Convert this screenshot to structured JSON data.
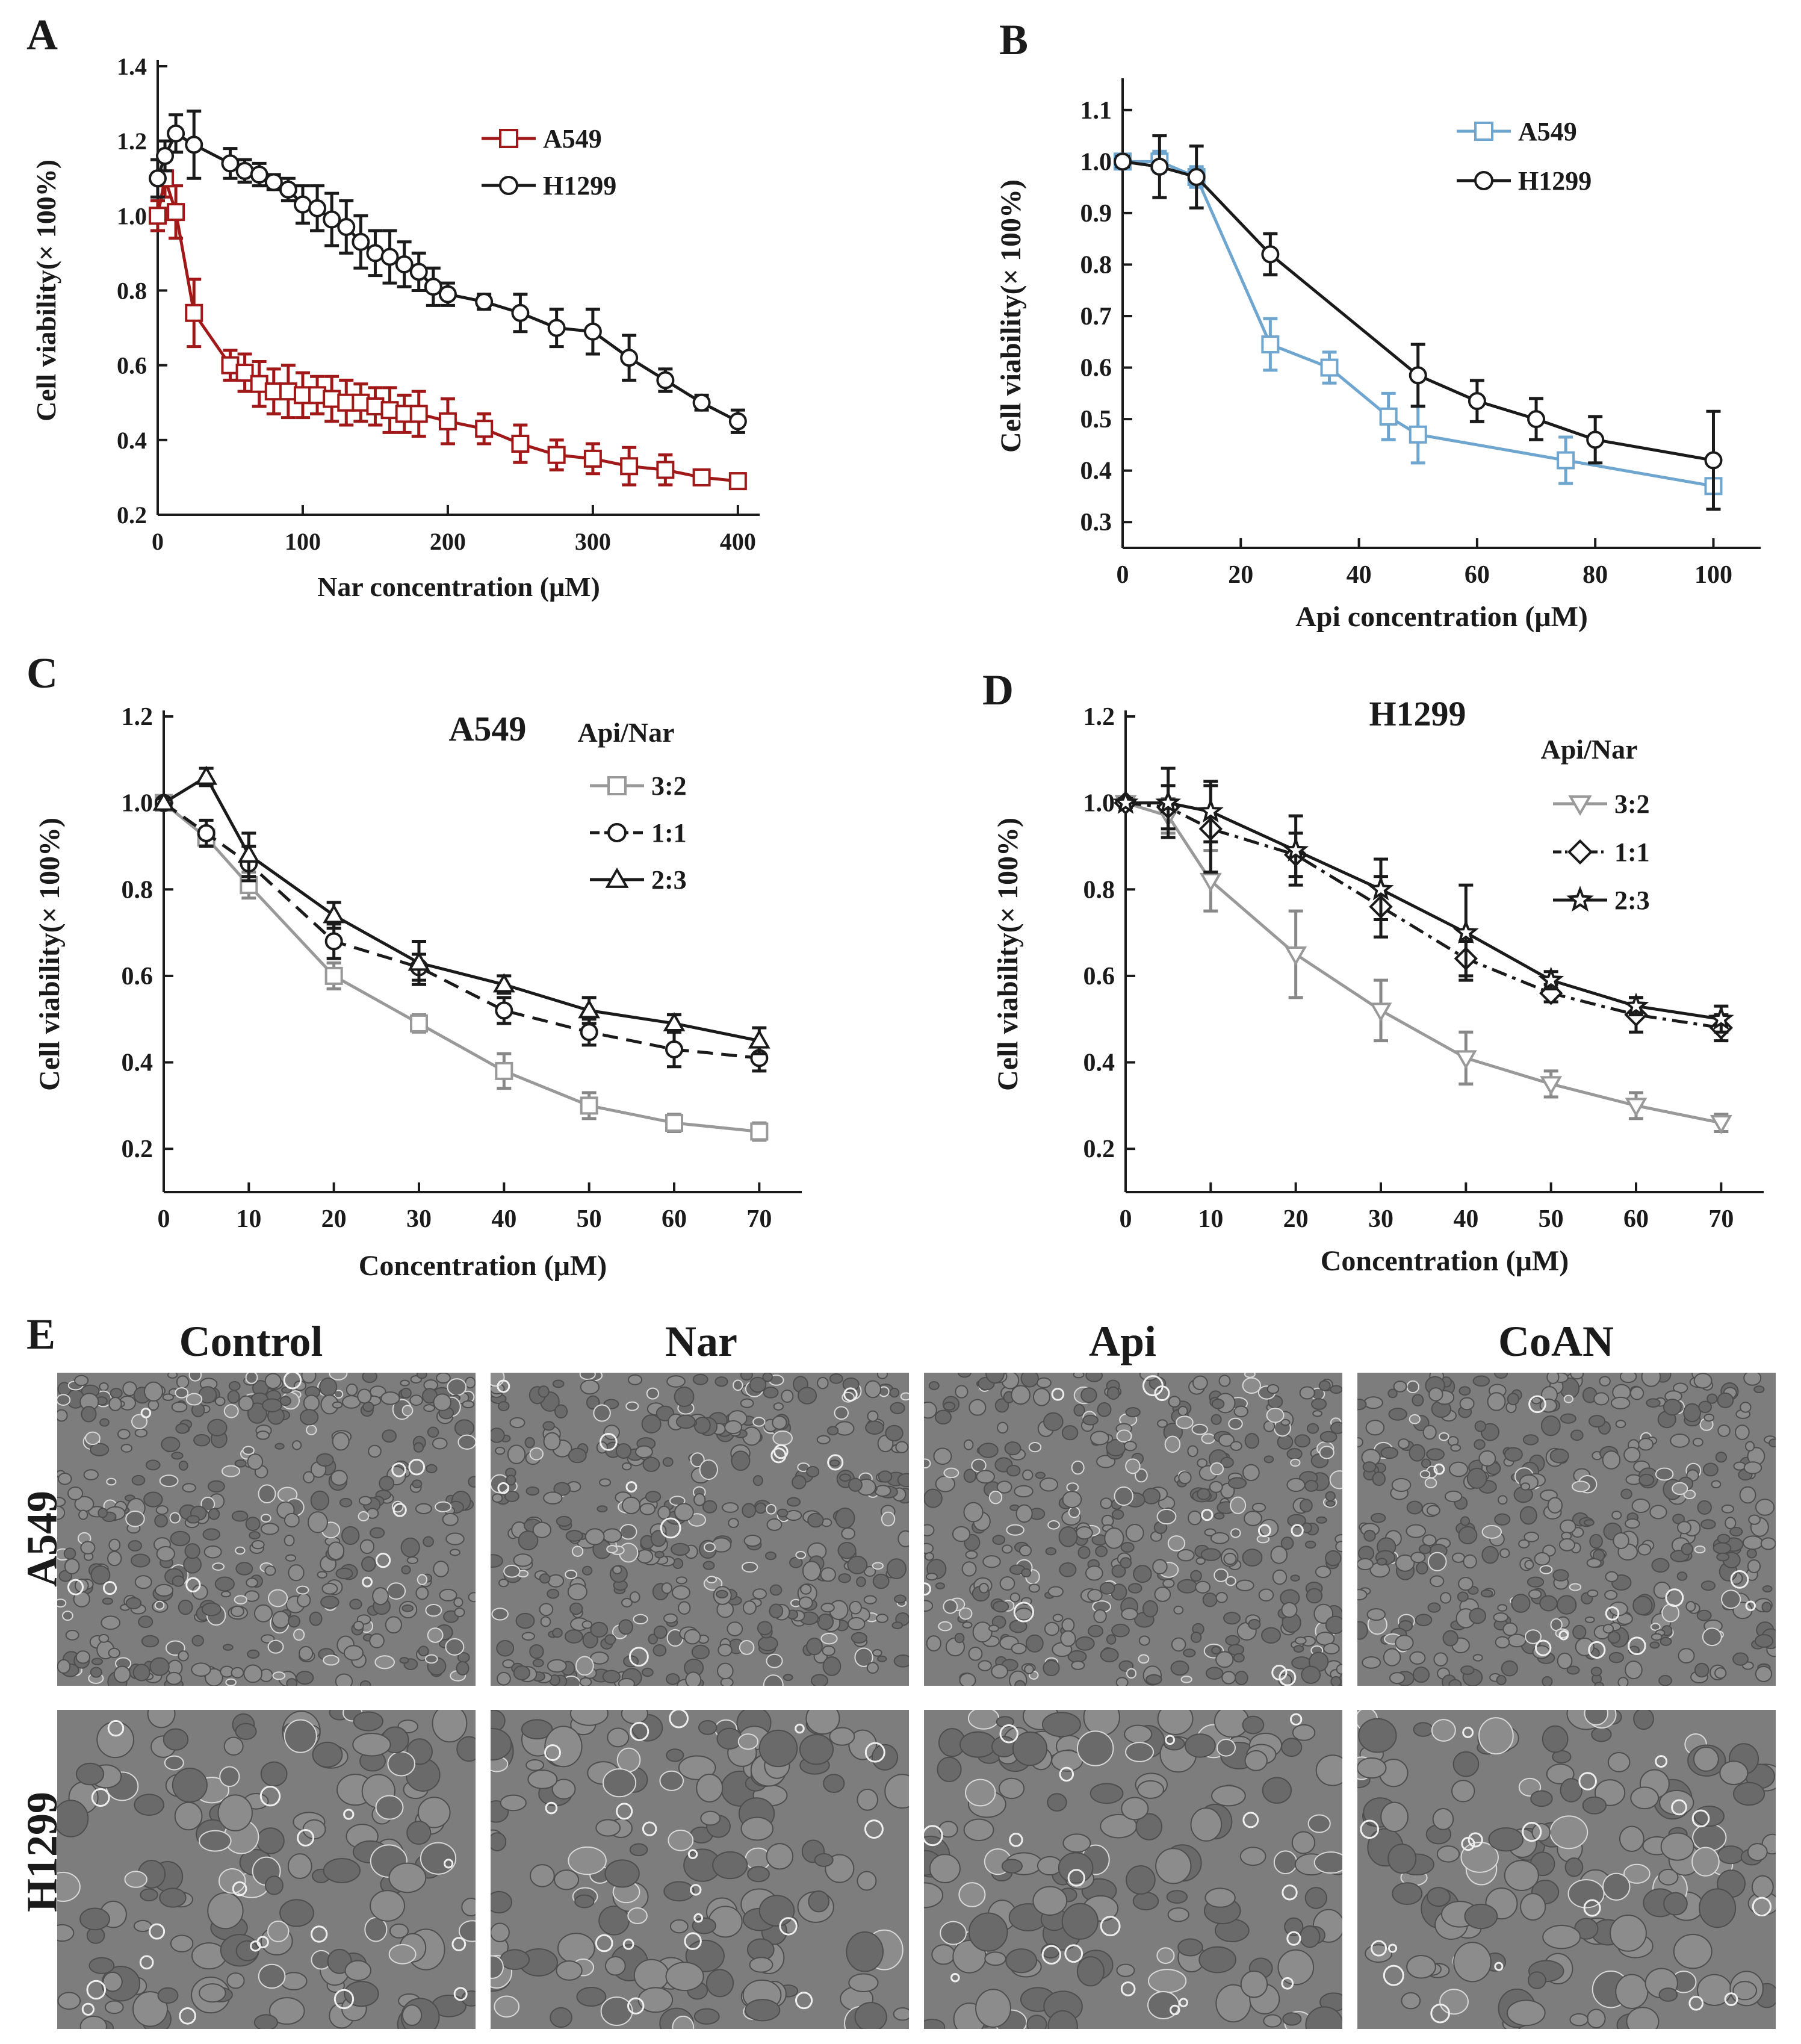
{
  "panels": {
    "A": "A",
    "B": "B",
    "C": "C",
    "D": "D",
    "E": "E"
  },
  "chart_data": [
    {
      "id": "A",
      "type": "line",
      "title": "",
      "xlabel": "Nar concentration (μM)",
      "ylabel": "Cell viability(× 100%)",
      "xlim": [
        0,
        415
      ],
      "ylim": [
        0.2,
        1.4
      ],
      "xticks": [
        0,
        100,
        200,
        300,
        400
      ],
      "yticks": [
        0.2,
        0.4,
        0.6,
        0.8,
        1.0,
        1.2,
        1.4
      ],
      "ytick_labels": [
        "0.2",
        "0.4",
        "0.6",
        "0.8",
        "1.0",
        "1.2",
        "1.4"
      ],
      "legend_location": "top-right",
      "series": [
        {
          "name": "A549",
          "color": "#a01818",
          "marker": "square",
          "dash": "solid",
          "x": [
            0,
            5,
            12.5,
            25,
            50,
            60,
            70,
            80,
            90,
            100,
            110,
            120,
            130,
            140,
            150,
            160,
            170,
            180,
            200,
            225,
            250,
            275,
            300,
            325,
            350,
            375,
            400
          ],
          "y": [
            1.0,
            1.1,
            1.01,
            0.74,
            0.6,
            0.58,
            0.55,
            0.53,
            0.53,
            0.52,
            0.52,
            0.51,
            0.5,
            0.5,
            0.49,
            0.48,
            0.47,
            0.47,
            0.45,
            0.43,
            0.39,
            0.36,
            0.35,
            0.33,
            0.32,
            0.3,
            0.29
          ],
          "err": [
            0.04,
            0.05,
            0.07,
            0.09,
            0.04,
            0.05,
            0.06,
            0.06,
            0.07,
            0.06,
            0.05,
            0.06,
            0.06,
            0.05,
            0.05,
            0.06,
            0.05,
            0.06,
            0.06,
            0.04,
            0.05,
            0.04,
            0.04,
            0.05,
            0.04,
            0.02,
            0.02
          ]
        },
        {
          "name": "H1299",
          "color": "#1a1a1a",
          "marker": "circle",
          "dash": "solid",
          "x": [
            0,
            5,
            12.5,
            25,
            50,
            60,
            70,
            80,
            90,
            100,
            110,
            120,
            130,
            140,
            150,
            160,
            170,
            180,
            190,
            200,
            225,
            250,
            275,
            300,
            325,
            350,
            375,
            400
          ],
          "y": [
            1.1,
            1.16,
            1.22,
            1.19,
            1.14,
            1.12,
            1.11,
            1.09,
            1.07,
            1.03,
            1.02,
            0.99,
            0.97,
            0.93,
            0.9,
            0.89,
            0.87,
            0.85,
            0.81,
            0.79,
            0.77,
            0.74,
            0.7,
            0.69,
            0.62,
            0.56,
            0.5,
            0.45
          ],
          "err": [
            0.05,
            0.04,
            0.05,
            0.09,
            0.04,
            0.03,
            0.03,
            0.02,
            0.03,
            0.05,
            0.06,
            0.07,
            0.07,
            0.07,
            0.06,
            0.07,
            0.06,
            0.05,
            0.05,
            0.03,
            0.02,
            0.05,
            0.05,
            0.06,
            0.06,
            0.03,
            0.02,
            0.03
          ]
        }
      ]
    },
    {
      "id": "B",
      "type": "line",
      "title": "",
      "xlabel": "Api concentration (μM)",
      "ylabel": "Cell viability(× 100%)",
      "xlim": [
        0,
        108
      ],
      "ylim": [
        0.25,
        1.15
      ],
      "xticks": [
        0,
        20,
        40,
        60,
        80,
        100
      ],
      "yticks": [
        0.3,
        0.4,
        0.5,
        0.6,
        0.7,
        0.8,
        0.9,
        1.0,
        1.1
      ],
      "ytick_labels": [
        "0.3",
        "0.4",
        "0.5",
        "0.6",
        "0.7",
        "0.8",
        "0.9",
        "1.0",
        "1.1"
      ],
      "legend_location": "top-right",
      "series": [
        {
          "name": "A549",
          "color": "#6fa6cf",
          "marker": "square",
          "dash": "solid",
          "x": [
            0,
            6.25,
            12.5,
            25,
            35,
            45,
            50,
            75,
            100
          ],
          "y": [
            1.0,
            1.0,
            0.97,
            0.645,
            0.6,
            0.505,
            0.47,
            0.42,
            0.37
          ],
          "err": [
            0.01,
            0.02,
            0.02,
            0.05,
            0.03,
            0.045,
            0.055,
            0.045,
            0.045
          ]
        },
        {
          "name": "H1299",
          "color": "#1a1a1a",
          "marker": "circle",
          "dash": "solid",
          "x": [
            0,
            6.25,
            12.5,
            25,
            50,
            60,
            70,
            80,
            100
          ],
          "y": [
            1.0,
            0.99,
            0.97,
            0.82,
            0.585,
            0.535,
            0.5,
            0.46,
            0.42
          ],
          "err": [
            0.01,
            0.06,
            0.06,
            0.04,
            0.06,
            0.04,
            0.04,
            0.045,
            0.095
          ]
        }
      ]
    },
    {
      "id": "C",
      "type": "line",
      "title": "A549",
      "xlabel": "Concentration (μM)",
      "ylabel": "Cell viability(× 100%)",
      "xlim": [
        0,
        75
      ],
      "ylim": [
        0.1,
        1.2
      ],
      "xticks": [
        0,
        10,
        20,
        30,
        40,
        50,
        60,
        70
      ],
      "yticks": [
        0.2,
        0.4,
        0.6,
        0.8,
        1.0,
        1.2
      ],
      "ytick_labels": [
        "0.2",
        "0.4",
        "0.6",
        "0.8",
        "1.0",
        "1.2"
      ],
      "legend_title": "Api/Nar",
      "legend_location": "top-right",
      "series": [
        {
          "name": "3:2",
          "color": "#999999",
          "marker": "square",
          "dash": "solid",
          "x": [
            0,
            5,
            10,
            20,
            30,
            40,
            50,
            60,
            70
          ],
          "y": [
            1.0,
            0.92,
            0.81,
            0.6,
            0.49,
            0.38,
            0.3,
            0.26,
            0.24
          ],
          "err": [
            0.01,
            0.02,
            0.03,
            0.03,
            0.02,
            0.04,
            0.03,
            0.02,
            0.02
          ]
        },
        {
          "name": "1:1",
          "color": "#1a1a1a",
          "marker": "circle",
          "dash": "dashed",
          "x": [
            0,
            5,
            10,
            20,
            30,
            40,
            50,
            60,
            70
          ],
          "y": [
            1.0,
            0.93,
            0.86,
            0.68,
            0.62,
            0.52,
            0.47,
            0.43,
            0.41
          ],
          "err": [
            0.01,
            0.03,
            0.04,
            0.04,
            0.03,
            0.03,
            0.03,
            0.04,
            0.03
          ]
        },
        {
          "name": "2:3",
          "color": "#1a1a1a",
          "marker": "triangle-up",
          "dash": "solid",
          "x": [
            0,
            5,
            10,
            20,
            30,
            40,
            50,
            60,
            70
          ],
          "y": [
            1.0,
            1.06,
            0.88,
            0.74,
            0.63,
            0.58,
            0.52,
            0.49,
            0.45
          ],
          "err": [
            0.01,
            0.02,
            0.05,
            0.03,
            0.05,
            0.02,
            0.03,
            0.02,
            0.03
          ]
        }
      ]
    },
    {
      "id": "D",
      "type": "line",
      "title": "H1299",
      "xlabel": "Concentration (μM)",
      "ylabel": "Cell viability(× 100%)",
      "xlim": [
        0,
        75
      ],
      "ylim": [
        0.1,
        1.2
      ],
      "xticks": [
        0,
        10,
        20,
        30,
        40,
        50,
        60,
        70
      ],
      "yticks": [
        0.2,
        0.4,
        0.6,
        0.8,
        1.0,
        1.2
      ],
      "ytick_labels": [
        "0.2",
        "0.4",
        "0.6",
        "0.8",
        "1.0",
        "1.2"
      ],
      "legend_title": "Api/Nar",
      "legend_location": "top-right",
      "series": [
        {
          "name": "3:2",
          "color": "#999999",
          "marker": "triangle-down",
          "dash": "solid",
          "x": [
            0,
            5,
            10,
            20,
            30,
            40,
            50,
            60,
            70
          ],
          "y": [
            1.0,
            0.97,
            0.82,
            0.65,
            0.52,
            0.41,
            0.35,
            0.3,
            0.26
          ],
          "err": [
            0.01,
            0.04,
            0.07,
            0.1,
            0.07,
            0.06,
            0.03,
            0.03,
            0.02
          ]
        },
        {
          "name": "1:1",
          "color": "#1a1a1a",
          "marker": "diamond",
          "dash": "dashdot",
          "x": [
            0,
            5,
            10,
            20,
            30,
            40,
            50,
            60,
            70
          ],
          "y": [
            1.0,
            0.99,
            0.94,
            0.88,
            0.76,
            0.64,
            0.56,
            0.51,
            0.48
          ],
          "err": [
            0.01,
            0.05,
            0.1,
            0.05,
            0.07,
            0.04,
            0.02,
            0.04,
            0.03
          ]
        },
        {
          "name": "2:3",
          "color": "#1a1a1a",
          "marker": "star",
          "dash": "solid",
          "x": [
            0,
            5,
            10,
            20,
            30,
            40,
            50,
            60,
            70
          ],
          "y": [
            1.0,
            1.0,
            0.98,
            0.89,
            0.8,
            0.7,
            0.59,
            0.53,
            0.5
          ],
          "err": [
            0.01,
            0.08,
            0.07,
            0.08,
            0.07,
            0.11,
            0.02,
            0.02,
            0.03
          ]
        }
      ]
    }
  ],
  "micrographs": {
    "columns": [
      "Control",
      "Nar",
      "Api",
      "CoAN"
    ],
    "rows": [
      "A549",
      "H1299"
    ]
  }
}
